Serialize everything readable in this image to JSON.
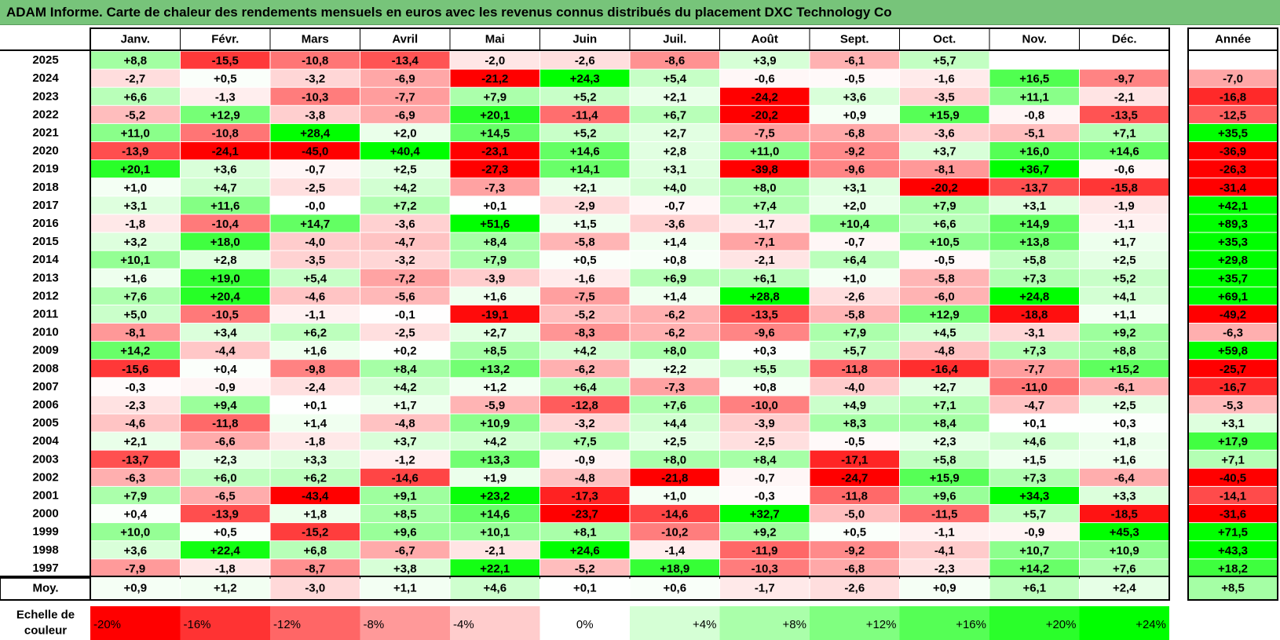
{
  "title": "ADAM Informe. Carte de chaleur des rendements mensuels en euros avec les revenus connus distribués du placement DXC Technology Co",
  "colors": {
    "title_bg": "#77c47a",
    "negative": "#ff0000",
    "positive": "#00ff00",
    "neutral": "#ffffff"
  },
  "chart_data": {
    "type": "heatmap",
    "months": [
      "Janv.",
      "Févr.",
      "Mars",
      "Avril",
      "Mai",
      "Juin",
      "Juil.",
      "Août",
      "Sept.",
      "Oct.",
      "Nov.",
      "Déc."
    ],
    "annual_header": "Année",
    "rows": [
      {
        "year": "2025",
        "values": [
          "+8,8",
          "-15,5",
          "-10,8",
          "-13,4",
          "-2,0",
          "-2,6",
          "-8,6",
          "+3,9",
          "-6,1",
          "+5,7",
          "",
          ""
        ],
        "annual": ""
      },
      {
        "year": "2024",
        "values": [
          "-2,7",
          "+0,5",
          "-3,2",
          "-6,9",
          "-21,2",
          "+24,3",
          "+5,4",
          "-0,6",
          "-0,5",
          "-1,6",
          "+16,5",
          "-9,7"
        ],
        "annual": "-7,0"
      },
      {
        "year": "2023",
        "values": [
          "+6,6",
          "-1,3",
          "-10,3",
          "-7,7",
          "+7,9",
          "+5,2",
          "+2,1",
          "-24,2",
          "+3,6",
          "-3,5",
          "+11,1",
          "-2,1"
        ],
        "annual": "-16,8"
      },
      {
        "year": "2022",
        "values": [
          "-5,2",
          "+12,9",
          "-3,8",
          "-6,9",
          "+20,1",
          "-11,4",
          "+6,7",
          "-20,2",
          "+0,9",
          "+15,9",
          "-0,8",
          "-13,5"
        ],
        "annual": "-12,5"
      },
      {
        "year": "2021",
        "values": [
          "+11,0",
          "-10,8",
          "+28,4",
          "+2,0",
          "+14,5",
          "+5,2",
          "+2,7",
          "-7,5",
          "-6,8",
          "-3,6",
          "-5,1",
          "+7,1"
        ],
        "annual": "+35,5"
      },
      {
        "year": "2020",
        "values": [
          "-13,9",
          "-24,1",
          "-45,0",
          "+40,4",
          "-23,1",
          "+14,6",
          "+2,8",
          "+11,0",
          "-9,2",
          "+3,7",
          "+16,0",
          "+14,6"
        ],
        "annual": "-36,9"
      },
      {
        "year": "2019",
        "values": [
          "+20,1",
          "+3,6",
          "-0,7",
          "+2,5",
          "-27,3",
          "+14,1",
          "+3,1",
          "-39,8",
          "-9,6",
          "-8,1",
          "+36,7",
          "-0,6"
        ],
        "annual": "-26,3"
      },
      {
        "year": "2018",
        "values": [
          "+1,0",
          "+4,7",
          "-2,5",
          "+4,2",
          "-7,3",
          "+2,1",
          "+4,0",
          "+8,0",
          "+3,1",
          "-20,2",
          "-13,7",
          "-15,8"
        ],
        "annual": "-31,4"
      },
      {
        "year": "2017",
        "values": [
          "+3,1",
          "+11,6",
          "-0,0",
          "+7,2",
          "+0,1",
          "-2,9",
          "-0,7",
          "+7,4",
          "+2,0",
          "+7,9",
          "+3,1",
          "-1,9"
        ],
        "annual": "+42,1"
      },
      {
        "year": "2016",
        "values": [
          "-1,8",
          "-10,4",
          "+14,7",
          "-3,6",
          "+51,6",
          "+1,5",
          "-3,6",
          "-1,7",
          "+10,4",
          "+6,6",
          "+14,9",
          "-1,1"
        ],
        "annual": "+89,3"
      },
      {
        "year": "2015",
        "values": [
          "+3,2",
          "+18,0",
          "-4,0",
          "-4,7",
          "+8,4",
          "-5,8",
          "+1,4",
          "-7,1",
          "-0,7",
          "+10,5",
          "+13,8",
          "+1,7"
        ],
        "annual": "+35,3"
      },
      {
        "year": "2014",
        "values": [
          "+10,1",
          "+2,8",
          "-3,5",
          "-3,2",
          "+7,9",
          "+0,5",
          "+0,8",
          "-2,1",
          "+6,4",
          "-0,5",
          "+5,8",
          "+2,5"
        ],
        "annual": "+29,8"
      },
      {
        "year": "2013",
        "values": [
          "+1,6",
          "+19,0",
          "+5,4",
          "-7,2",
          "-3,9",
          "-1,6",
          "+6,9",
          "+6,1",
          "+1,0",
          "-5,8",
          "+7,3",
          "+5,2"
        ],
        "annual": "+35,7"
      },
      {
        "year": "2012",
        "values": [
          "+7,6",
          "+20,4",
          "-4,6",
          "-5,6",
          "+1,6",
          "-7,5",
          "+1,4",
          "+28,8",
          "-2,6",
          "-6,0",
          "+24,8",
          "+4,1"
        ],
        "annual": "+69,1"
      },
      {
        "year": "2011",
        "values": [
          "+5,0",
          "-10,5",
          "-1,1",
          "-0,1",
          "-19,1",
          "-5,2",
          "-6,2",
          "-13,5",
          "-5,8",
          "+12,9",
          "-18,8",
          "+1,1"
        ],
        "annual": "-49,2"
      },
      {
        "year": "2010",
        "values": [
          "-8,1",
          "+3,4",
          "+6,2",
          "-2,5",
          "+2,7",
          "-8,3",
          "-6,2",
          "-9,6",
          "+7,9",
          "+4,5",
          "-3,1",
          "+9,2"
        ],
        "annual": "-6,3"
      },
      {
        "year": "2009",
        "values": [
          "+14,2",
          "-4,4",
          "+1,6",
          "+0,2",
          "+8,5",
          "+4,2",
          "+8,0",
          "+0,3",
          "+5,7",
          "-4,8",
          "+7,3",
          "+8,8"
        ],
        "annual": "+59,8"
      },
      {
        "year": "2008",
        "values": [
          "-15,6",
          "+0,4",
          "-9,8",
          "+8,4",
          "+13,2",
          "-6,2",
          "+2,2",
          "+5,5",
          "-11,8",
          "-16,4",
          "-7,7",
          "+15,2"
        ],
        "annual": "-25,7"
      },
      {
        "year": "2007",
        "values": [
          "-0,3",
          "-0,9",
          "-2,4",
          "+4,2",
          "+1,2",
          "+6,4",
          "-7,3",
          "+0,8",
          "-4,0",
          "+2,7",
          "-11,0",
          "-6,1"
        ],
        "annual": "-16,7"
      },
      {
        "year": "2006",
        "values": [
          "-2,3",
          "+9,4",
          "+0,1",
          "+1,7",
          "-5,9",
          "-12,8",
          "+7,6",
          "-10,0",
          "+4,9",
          "+7,1",
          "-4,7",
          "+2,5"
        ],
        "annual": "-5,3"
      },
      {
        "year": "2005",
        "values": [
          "-4,6",
          "-11,8",
          "+1,4",
          "-4,8",
          "+10,9",
          "-3,2",
          "+4,4",
          "-3,9",
          "+8,3",
          "+8,4",
          "+0,1",
          "+0,3"
        ],
        "annual": "+3,1"
      },
      {
        "year": "2004",
        "values": [
          "+2,1",
          "-6,6",
          "-1,8",
          "+3,7",
          "+4,2",
          "+7,5",
          "+2,5",
          "-2,5",
          "-0,5",
          "+2,3",
          "+4,6",
          "+1,8"
        ],
        "annual": "+17,9"
      },
      {
        "year": "2003",
        "values": [
          "-13,7",
          "+2,3",
          "+3,3",
          "-1,2",
          "+13,3",
          "-0,9",
          "+8,0",
          "+8,4",
          "-17,1",
          "+5,8",
          "+1,5",
          "+1,6"
        ],
        "annual": "+7,1"
      },
      {
        "year": "2002",
        "values": [
          "-6,3",
          "+6,0",
          "+6,2",
          "-14,6",
          "+1,9",
          "-4,8",
          "-21,8",
          "-0,7",
          "-24,7",
          "+15,9",
          "+7,3",
          "-6,4"
        ],
        "annual": "-40,5"
      },
      {
        "year": "2001",
        "values": [
          "+7,9",
          "-6,5",
          "-43,4",
          "+9,1",
          "+23,2",
          "-17,3",
          "+1,0",
          "-0,3",
          "-11,8",
          "+9,6",
          "+34,3",
          "+3,3"
        ],
        "annual": "-14,1"
      },
      {
        "year": "2000",
        "values": [
          "+0,4",
          "-13,9",
          "+1,8",
          "+8,5",
          "+14,6",
          "-23,7",
          "-14,6",
          "+32,7",
          "-5,0",
          "-11,5",
          "+5,7",
          "-18,5"
        ],
        "annual": "-31,6"
      },
      {
        "year": "1999",
        "values": [
          "+10,0",
          "+0,5",
          "-15,2",
          "+9,6",
          "+10,1",
          "+8,1",
          "-10,2",
          "+9,2",
          "+0,5",
          "-1,1",
          "-0,9",
          "+45,3"
        ],
        "annual": "+71,5"
      },
      {
        "year": "1998",
        "values": [
          "+3,6",
          "+22,4",
          "+6,8",
          "-6,7",
          "-2,1",
          "+24,6",
          "-1,4",
          "-11,9",
          "-9,2",
          "-4,1",
          "+10,7",
          "+10,9"
        ],
        "annual": "+43,3"
      },
      {
        "year": "1997",
        "values": [
          "-7,9",
          "-1,8",
          "-8,7",
          "+3,8",
          "+22,1",
          "-5,2",
          "+18,9",
          "-10,3",
          "-6,8",
          "-2,3",
          "+14,2",
          "+7,6"
        ],
        "annual": "+18,2"
      }
    ],
    "average": {
      "label": "Moy.",
      "values": [
        "+0,9",
        "+1,2",
        "-3,0",
        "+1,1",
        "+4,6",
        "+0,1",
        "+0,6",
        "-1,7",
        "-2,6",
        "+0,9",
        "+6,1",
        "+2,4"
      ],
      "annual": "+8,5"
    },
    "scale": {
      "label_line1": "Echelle de",
      "label_line2": "couleur",
      "steps": [
        "-20%",
        "-16%",
        "-12%",
        "-8%",
        "-4%",
        "0%",
        "+4%",
        "+8%",
        "+12%",
        "+16%",
        "+20%",
        "+24%"
      ]
    }
  }
}
